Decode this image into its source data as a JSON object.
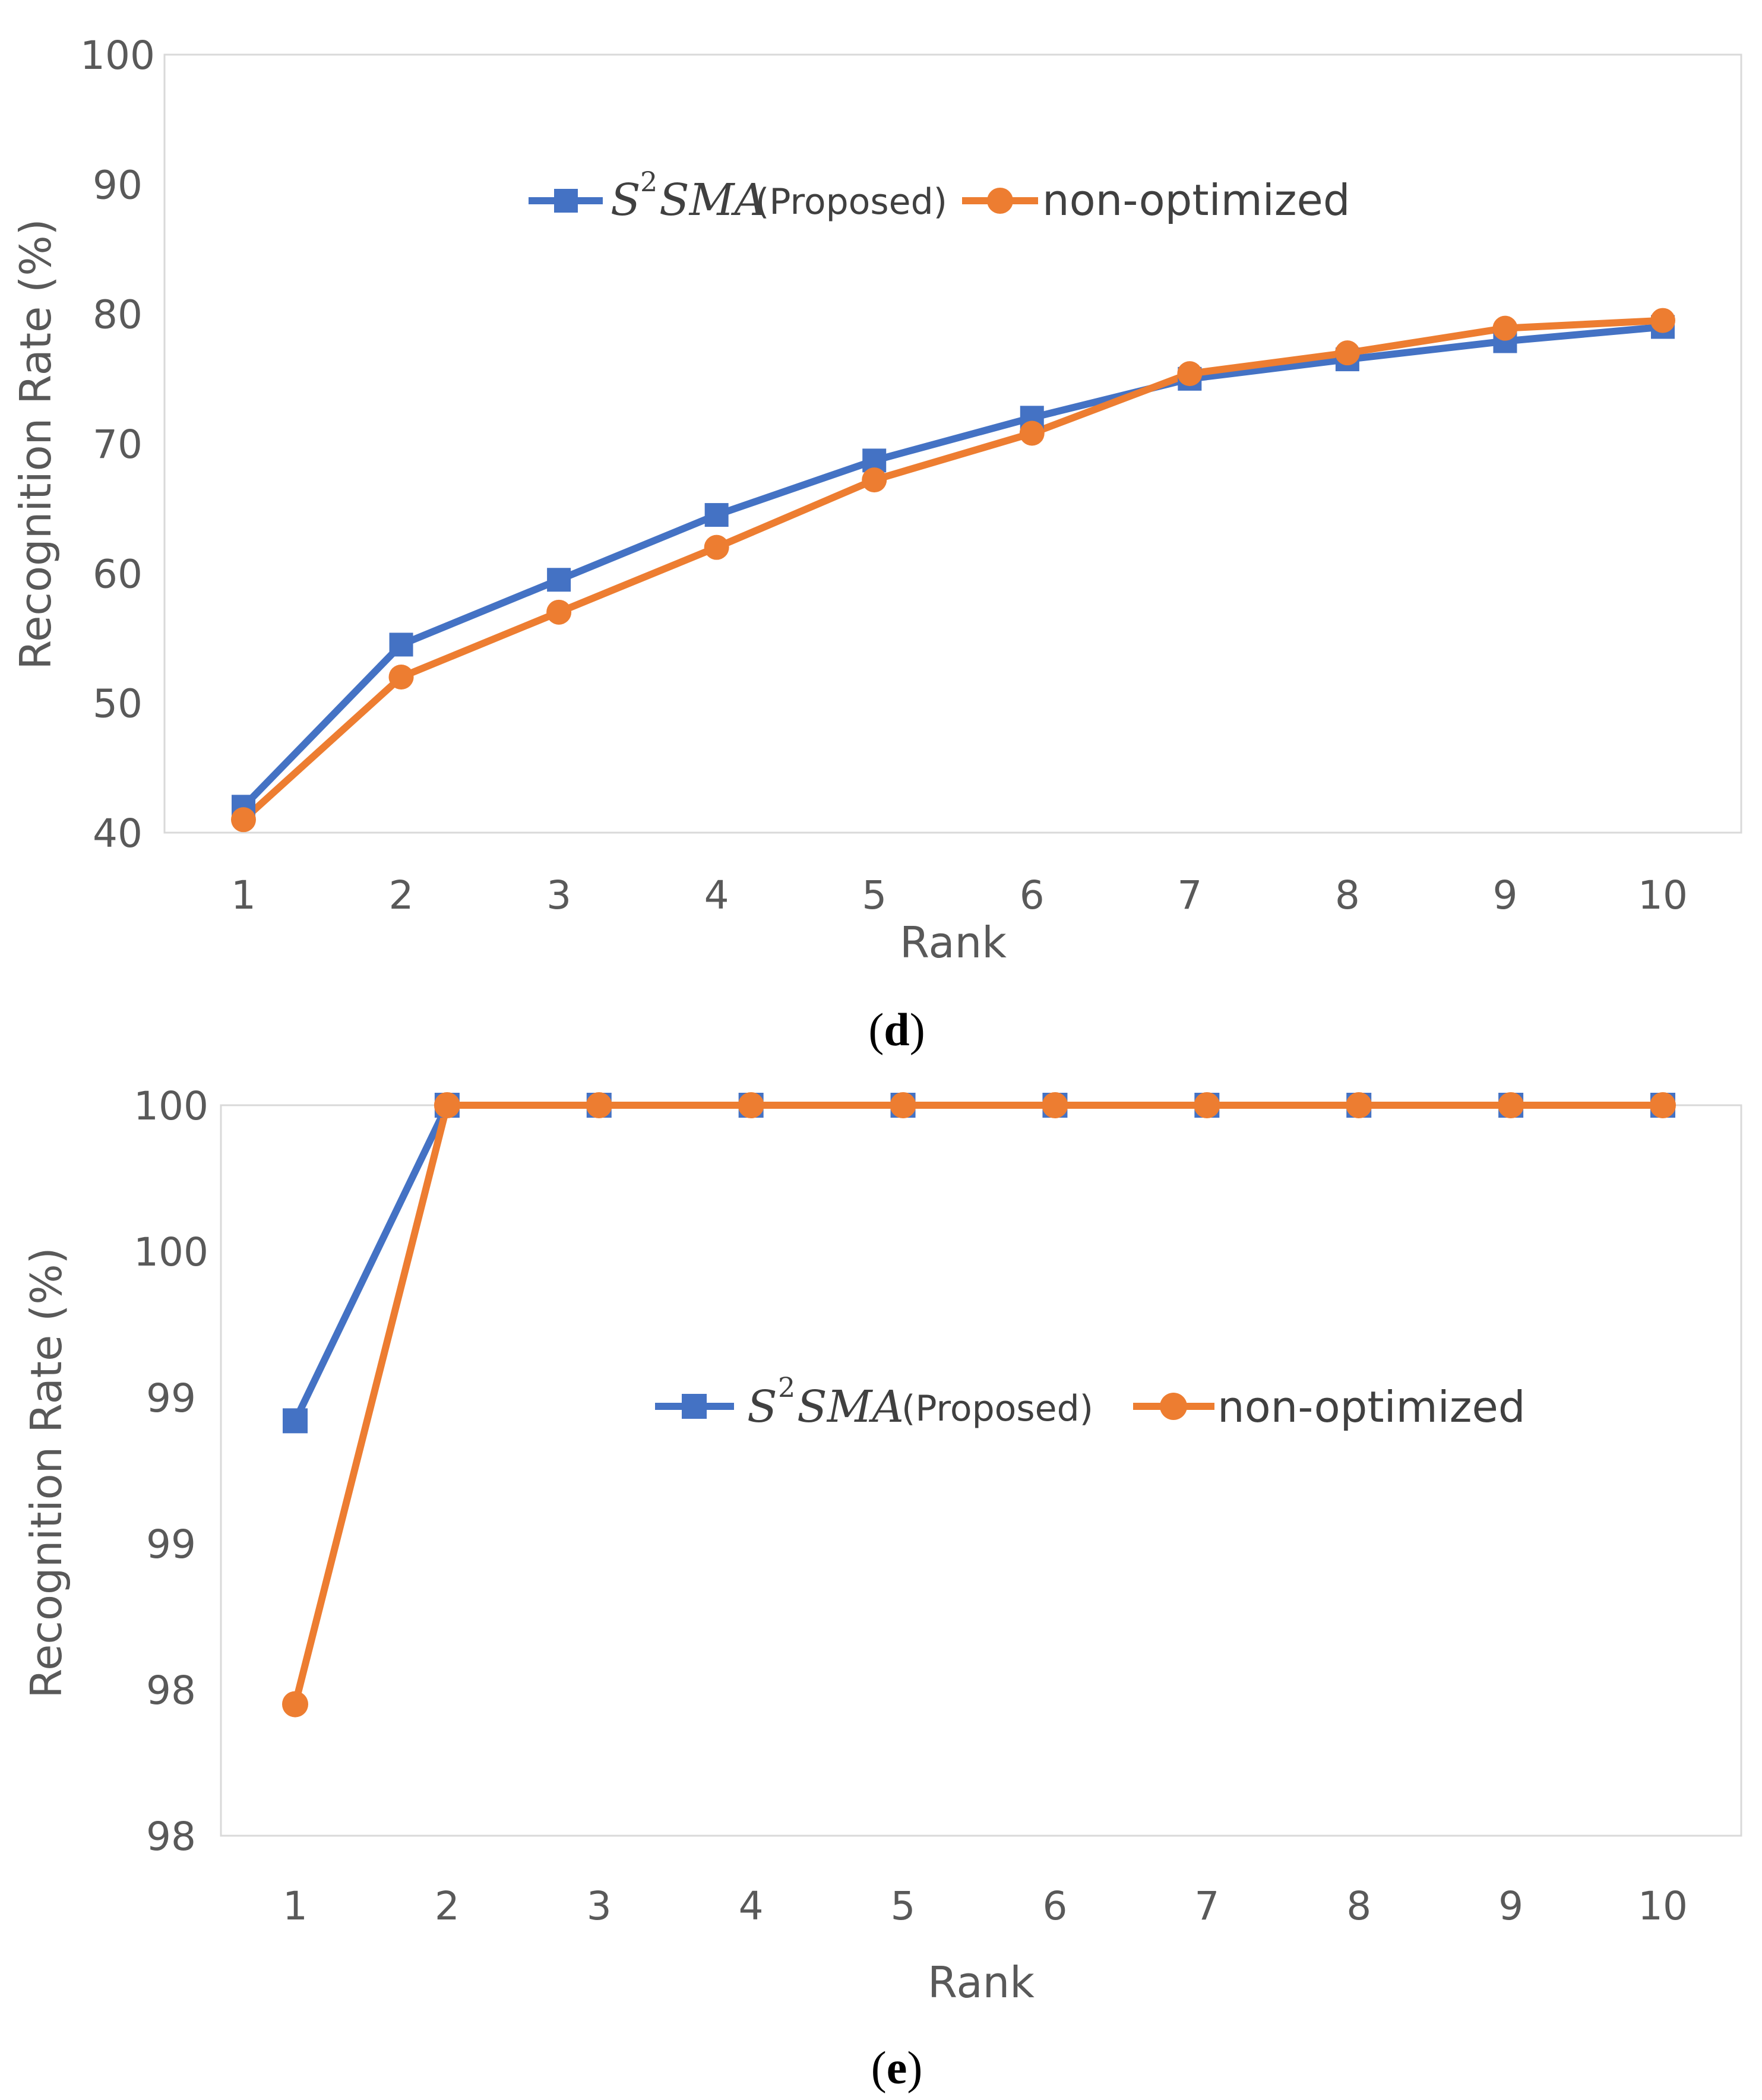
{
  "colors": {
    "proposed": "#4472C4",
    "non_optimized": "#ED7D31",
    "axis_text": "#595959",
    "frame": "#D9D9D9"
  },
  "chart_data": [
    {
      "id": "d",
      "type": "line",
      "caption_letter": "d",
      "caption_open": "(",
      "caption_close": ")",
      "xlabel": "Rank",
      "ylabel": "Recognition Rate (%)",
      "categories": [
        "1",
        "2",
        "3",
        "4",
        "5",
        "6",
        "7",
        "8",
        "9",
        "10"
      ],
      "ylim": [
        40,
        100
      ],
      "ytick_values": [
        40,
        50,
        60,
        70,
        80,
        90,
        100
      ],
      "ytick_labels": [
        "40",
        "50",
        "60",
        "70",
        "80",
        "90",
        "100"
      ],
      "legend": {
        "position": "top-center",
        "proposed_math": "S",
        "proposed_sup": "2",
        "proposed_math2": "SMA",
        "proposed_suffix": "(Proposed)",
        "non_optimized": "non-optimized"
      },
      "series": [
        {
          "key": "proposed",
          "name": "S2SMA (Proposed)",
          "marker": "square",
          "values": [
            42.0,
            54.5,
            59.5,
            64.5,
            68.7,
            72.0,
            75.0,
            76.5,
            77.9,
            79.0
          ]
        },
        {
          "key": "non_optimized",
          "name": "non-optimized",
          "marker": "circle",
          "values": [
            41.0,
            52.0,
            57.0,
            62.0,
            67.2,
            70.8,
            75.4,
            77.0,
            78.9,
            79.5
          ]
        }
      ]
    },
    {
      "id": "e",
      "type": "line",
      "caption_letter": "e",
      "caption_open": "(",
      "caption_close": ")",
      "xlabel": "Rank",
      "ylabel": "Recognition Rate (%)",
      "categories": [
        "1",
        "2",
        "3",
        "4",
        "5",
        "6",
        "7",
        "8",
        "9",
        "10"
      ],
      "ylim": [
        97.5,
        100
      ],
      "ytick_values": [
        97.5,
        98.0,
        98.5,
        99.0,
        99.5,
        100.0
      ],
      "ytick_labels": [
        "98",
        "98",
        "99",
        "99",
        "100",
        "100"
      ],
      "legend": {
        "position": "middle-right",
        "proposed_math": "S",
        "proposed_sup": "2",
        "proposed_math2": "SMA",
        "proposed_suffix": "(Proposed)",
        "non_optimized": "non-optimized"
      },
      "series": [
        {
          "key": "proposed",
          "name": "S2SMA (Proposed)",
          "marker": "square",
          "values": [
            98.92,
            100,
            100,
            100,
            100,
            100,
            100,
            100,
            100,
            100
          ]
        },
        {
          "key": "non_optimized",
          "name": "non-optimized",
          "marker": "circle",
          "values": [
            97.95,
            100,
            100,
            100,
            100,
            100,
            100,
            100,
            100,
            100
          ]
        }
      ]
    }
  ]
}
